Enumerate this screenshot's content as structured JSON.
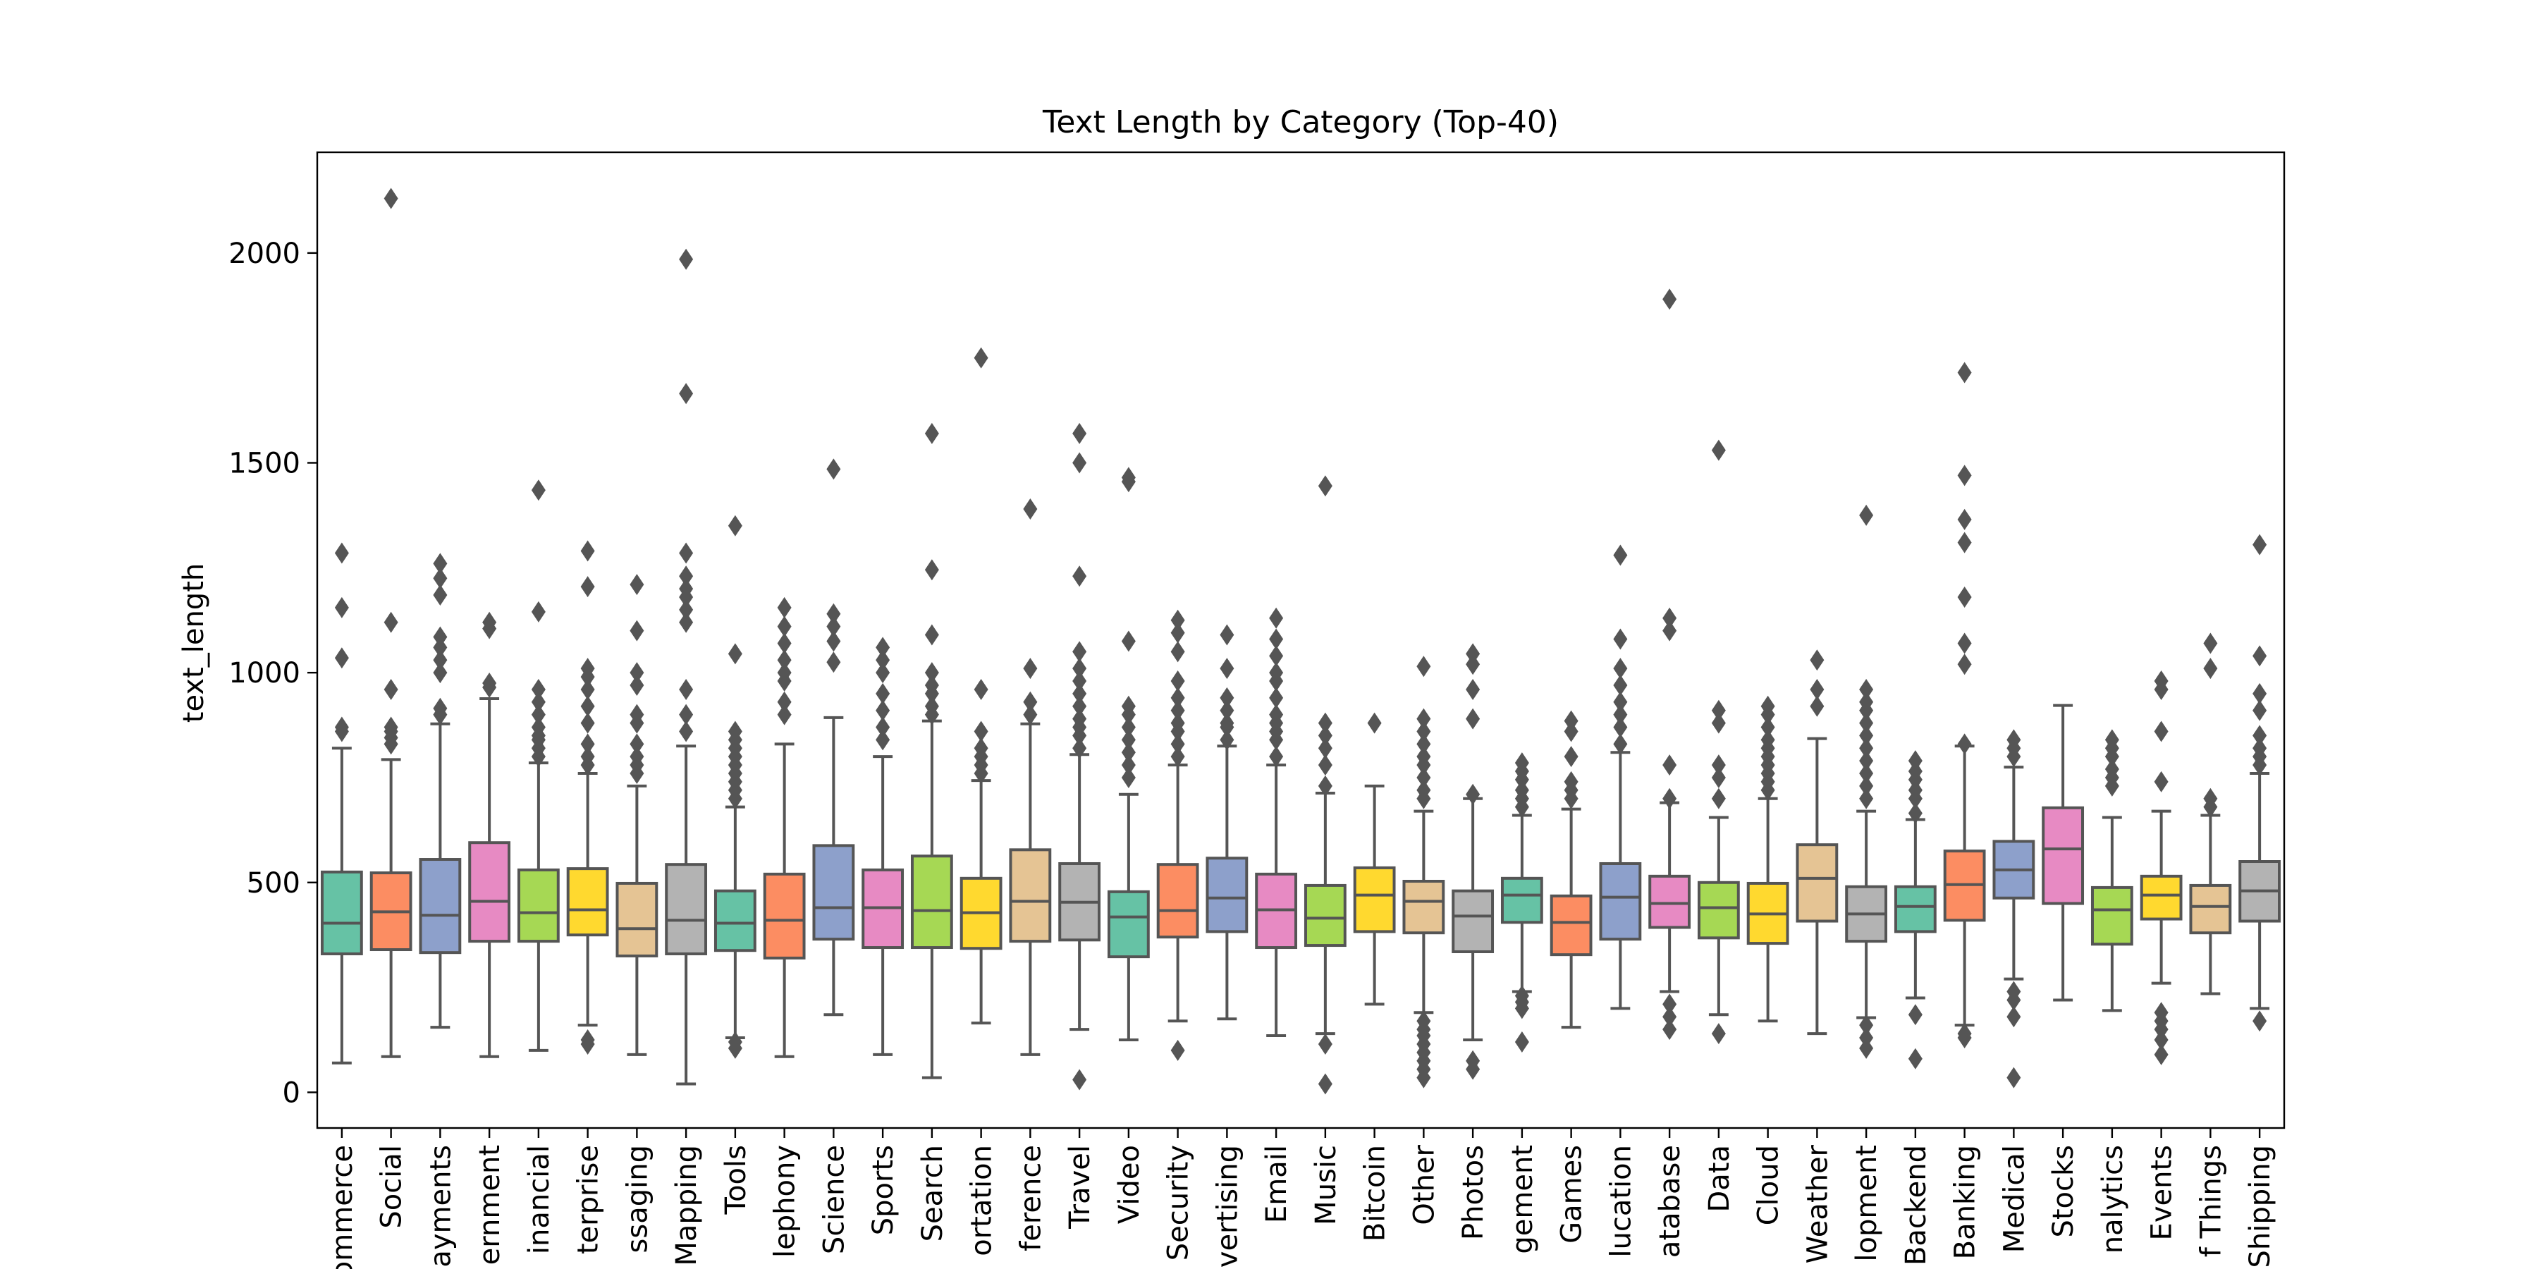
{
  "chart_data": {
    "type": "box",
    "title": "Text Length by Category (Top-40)",
    "xlabel": "",
    "ylabel": "text_length",
    "ylim": [
      -85,
      2240
    ],
    "yticks": [
      0,
      500,
      1000,
      1500,
      2000
    ],
    "grid": false,
    "legend": "none",
    "categories": [
      "ommerce",
      "Social",
      "ayments",
      "ernment",
      "inancial",
      "terprise",
      "ssaging",
      "Mapping",
      "Tools",
      "lephony",
      "Science",
      "Sports",
      "Search",
      "ortation",
      "ference",
      "Travel",
      "Video",
      "Security",
      "vertising",
      "Email",
      "Music",
      "Bitcoin",
      "Other",
      "Photos",
      "gement",
      "Games",
      "lucation",
      "atabase",
      "Data",
      "Cloud",
      "Weather",
      "lopment",
      "Backend",
      "Banking",
      "Medical",
      "Stocks",
      "nalytics",
      "Events",
      "f Things",
      "Shipping"
    ],
    "boxes": [
      {
        "min": 70,
        "q1": 330,
        "median": 403,
        "q3": 525,
        "max": 820,
        "outliers": [
          860,
          870,
          1035,
          1155,
          1285
        ]
      },
      {
        "min": 85,
        "q1": 340,
        "median": 430,
        "q3": 523,
        "max": 793,
        "outliers": [
          830,
          845,
          860,
          870,
          960,
          1120,
          2130
        ]
      },
      {
        "min": 155,
        "q1": 333,
        "median": 422,
        "q3": 555,
        "max": 878,
        "outliers": [
          900,
          915,
          1000,
          1030,
          1060,
          1085,
          1185,
          1225,
          1260
        ]
      },
      {
        "min": 85,
        "q1": 360,
        "median": 455,
        "q3": 595,
        "max": 938,
        "outliers": [
          965,
          975,
          1105,
          1120
        ]
      },
      {
        "min": 100,
        "q1": 360,
        "median": 428,
        "q3": 530,
        "max": 785,
        "outliers": [
          800,
          820,
          840,
          850,
          870,
          900,
          930,
          960,
          1145,
          1435
        ]
      },
      {
        "min": 160,
        "q1": 375,
        "median": 435,
        "q3": 533,
        "max": 760,
        "outliers": [
          115,
          125,
          780,
          800,
          830,
          880,
          920,
          960,
          990,
          1010,
          1205,
          1290
        ]
      },
      {
        "min": 90,
        "q1": 325,
        "median": 390,
        "q3": 498,
        "max": 730,
        "outliers": [
          760,
          780,
          800,
          830,
          880,
          900,
          970,
          1000,
          1100,
          1210
        ]
      },
      {
        "min": 20,
        "q1": 330,
        "median": 410,
        "q3": 543,
        "max": 825,
        "outliers": [
          860,
          900,
          960,
          1120,
          1150,
          1180,
          1200,
          1230,
          1285,
          1665,
          1985
        ]
      },
      {
        "min": 130,
        "q1": 338,
        "median": 403,
        "q3": 480,
        "max": 680,
        "outliers": [
          105,
          120,
          700,
          720,
          740,
          760,
          780,
          800,
          820,
          840,
          860,
          1045,
          1350
        ]
      },
      {
        "min": 85,
        "q1": 320,
        "median": 410,
        "q3": 520,
        "max": 830,
        "outliers": [
          900,
          930,
          980,
          1000,
          1030,
          1070,
          1110,
          1155
        ]
      },
      {
        "min": 185,
        "q1": 365,
        "median": 440,
        "q3": 588,
        "max": 893,
        "outliers": [
          1025,
          1075,
          1110,
          1140,
          1485
        ]
      },
      {
        "min": 90,
        "q1": 345,
        "median": 440,
        "q3": 530,
        "max": 800,
        "outliers": [
          840,
          870,
          910,
          950,
          1000,
          1030,
          1060
        ]
      },
      {
        "min": 35,
        "q1": 345,
        "median": 433,
        "q3": 563,
        "max": 885,
        "outliers": [
          900,
          920,
          950,
          970,
          1000,
          1090,
          1245,
          1570
        ]
      },
      {
        "min": 165,
        "q1": 343,
        "median": 428,
        "q3": 510,
        "max": 743,
        "outliers": [
          760,
          780,
          800,
          820,
          860,
          960,
          1750
        ]
      },
      {
        "min": 90,
        "q1": 360,
        "median": 455,
        "q3": 578,
        "max": 878,
        "outliers": [
          900,
          930,
          1010,
          1390
        ]
      },
      {
        "min": 150,
        "q1": 363,
        "median": 453,
        "q3": 545,
        "max": 805,
        "outliers": [
          30,
          820,
          850,
          870,
          890,
          920,
          950,
          980,
          1010,
          1050,
          1230,
          1500,
          1570
        ]
      },
      {
        "min": 125,
        "q1": 323,
        "median": 418,
        "q3": 478,
        "max": 710,
        "outliers": [
          750,
          780,
          810,
          840,
          870,
          900,
          920,
          1075,
          1455,
          1465
        ]
      },
      {
        "min": 170,
        "q1": 370,
        "median": 433,
        "q3": 543,
        "max": 780,
        "outliers": [
          100,
          800,
          830,
          860,
          880,
          910,
          940,
          980,
          1050,
          1095,
          1125
        ]
      },
      {
        "min": 175,
        "q1": 383,
        "median": 463,
        "q3": 558,
        "max": 825,
        "outliers": [
          840,
          870,
          880,
          910,
          940,
          1010,
          1090
        ]
      },
      {
        "min": 135,
        "q1": 345,
        "median": 435,
        "q3": 520,
        "max": 780,
        "outliers": [
          800,
          840,
          860,
          880,
          900,
          940,
          980,
          1000,
          1040,
          1080,
          1130
        ]
      },
      {
        "min": 140,
        "q1": 350,
        "median": 415,
        "q3": 493,
        "max": 713,
        "outliers": [
          20,
          115,
          730,
          780,
          820,
          850,
          880,
          1445
        ]
      },
      {
        "min": 210,
        "q1": 383,
        "median": 470,
        "q3": 535,
        "max": 730,
        "outliers": [
          880
        ]
      },
      {
        "min": 190,
        "q1": 380,
        "median": 455,
        "q3": 503,
        "max": 670,
        "outliers": [
          35,
          55,
          75,
          95,
          115,
          135,
          150,
          170,
          700,
          720,
          750,
          780,
          800,
          830,
          860,
          890,
          1015
        ]
      },
      {
        "min": 125,
        "q1": 335,
        "median": 420,
        "q3": 480,
        "max": 700,
        "outliers": [
          55,
          75,
          710,
          890,
          960,
          1020,
          1045
        ]
      },
      {
        "min": 240,
        "q1": 405,
        "median": 470,
        "q3": 510,
        "max": 660,
        "outliers": [
          120,
          200,
          215,
          230,
          680,
          700,
          720,
          745,
          765,
          785
        ]
      },
      {
        "min": 155,
        "q1": 328,
        "median": 405,
        "q3": 468,
        "max": 675,
        "outliers": [
          700,
          720,
          740,
          800,
          860,
          885
        ]
      },
      {
        "min": 200,
        "q1": 365,
        "median": 465,
        "q3": 545,
        "max": 810,
        "outliers": [
          830,
          870,
          900,
          930,
          970,
          1010,
          1080,
          1280
        ]
      },
      {
        "min": 240,
        "q1": 393,
        "median": 450,
        "q3": 515,
        "max": 690,
        "outliers": [
          150,
          180,
          210,
          700,
          780,
          1100,
          1130,
          1890
        ]
      },
      {
        "min": 185,
        "q1": 368,
        "median": 440,
        "q3": 500,
        "max": 655,
        "outliers": [
          140,
          700,
          750,
          780,
          880,
          910,
          1530
        ]
      },
      {
        "min": 170,
        "q1": 355,
        "median": 425,
        "q3": 498,
        "max": 700,
        "outliers": [
          720,
          740,
          760,
          780,
          800,
          820,
          840,
          870,
          900,
          920
        ]
      },
      {
        "min": 140,
        "q1": 408,
        "median": 510,
        "q3": 590,
        "max": 843,
        "outliers": [
          920,
          960,
          1030
        ]
      },
      {
        "min": 178,
        "q1": 360,
        "median": 425,
        "q3": 490,
        "max": 670,
        "outliers": [
          105,
          130,
          160,
          700,
          730,
          760,
          790,
          820,
          850,
          880,
          910,
          930,
          960,
          1375
        ]
      },
      {
        "min": 225,
        "q1": 383,
        "median": 443,
        "q3": 490,
        "max": 650,
        "outliers": [
          80,
          185,
          665,
          700,
          720,
          745,
          765,
          790
        ]
      },
      {
        "min": 160,
        "q1": 410,
        "median": 495,
        "q3": 575,
        "max": 825,
        "outliers": [
          130,
          140,
          830,
          1020,
          1070,
          1180,
          1310,
          1365,
          1470,
          1715
        ]
      },
      {
        "min": 270,
        "q1": 463,
        "median": 530,
        "q3": 598,
        "max": 775,
        "outliers": [
          35,
          180,
          220,
          240,
          800,
          820,
          840
        ]
      },
      {
        "min": 220,
        "q1": 450,
        "median": 580,
        "q3": 678,
        "max": 922,
        "outliers": []
      },
      {
        "min": 195,
        "q1": 353,
        "median": 435,
        "q3": 488,
        "max": 655,
        "outliers": [
          730,
          750,
          770,
          800,
          820,
          840
        ]
      },
      {
        "min": 260,
        "q1": 413,
        "median": 470,
        "q3": 515,
        "max": 670,
        "outliers": [
          90,
          125,
          150,
          170,
          190,
          740,
          860,
          960,
          980
        ]
      },
      {
        "min": 235,
        "q1": 380,
        "median": 443,
        "q3": 493,
        "max": 660,
        "outliers": [
          680,
          700,
          1010,
          1070
        ]
      },
      {
        "min": 200,
        "q1": 408,
        "median": 480,
        "q3": 550,
        "max": 760,
        "outliers": [
          170,
          780,
          800,
          820,
          850,
          910,
          950,
          1040,
          1305
        ]
      }
    ],
    "palette": [
      "#66c2a5",
      "#fc8d62",
      "#8da0cb",
      "#e78ac3",
      "#a6d854",
      "#ffd92f",
      "#e5c494",
      "#b3b3b3"
    ],
    "box_edge_color": "#555555"
  }
}
